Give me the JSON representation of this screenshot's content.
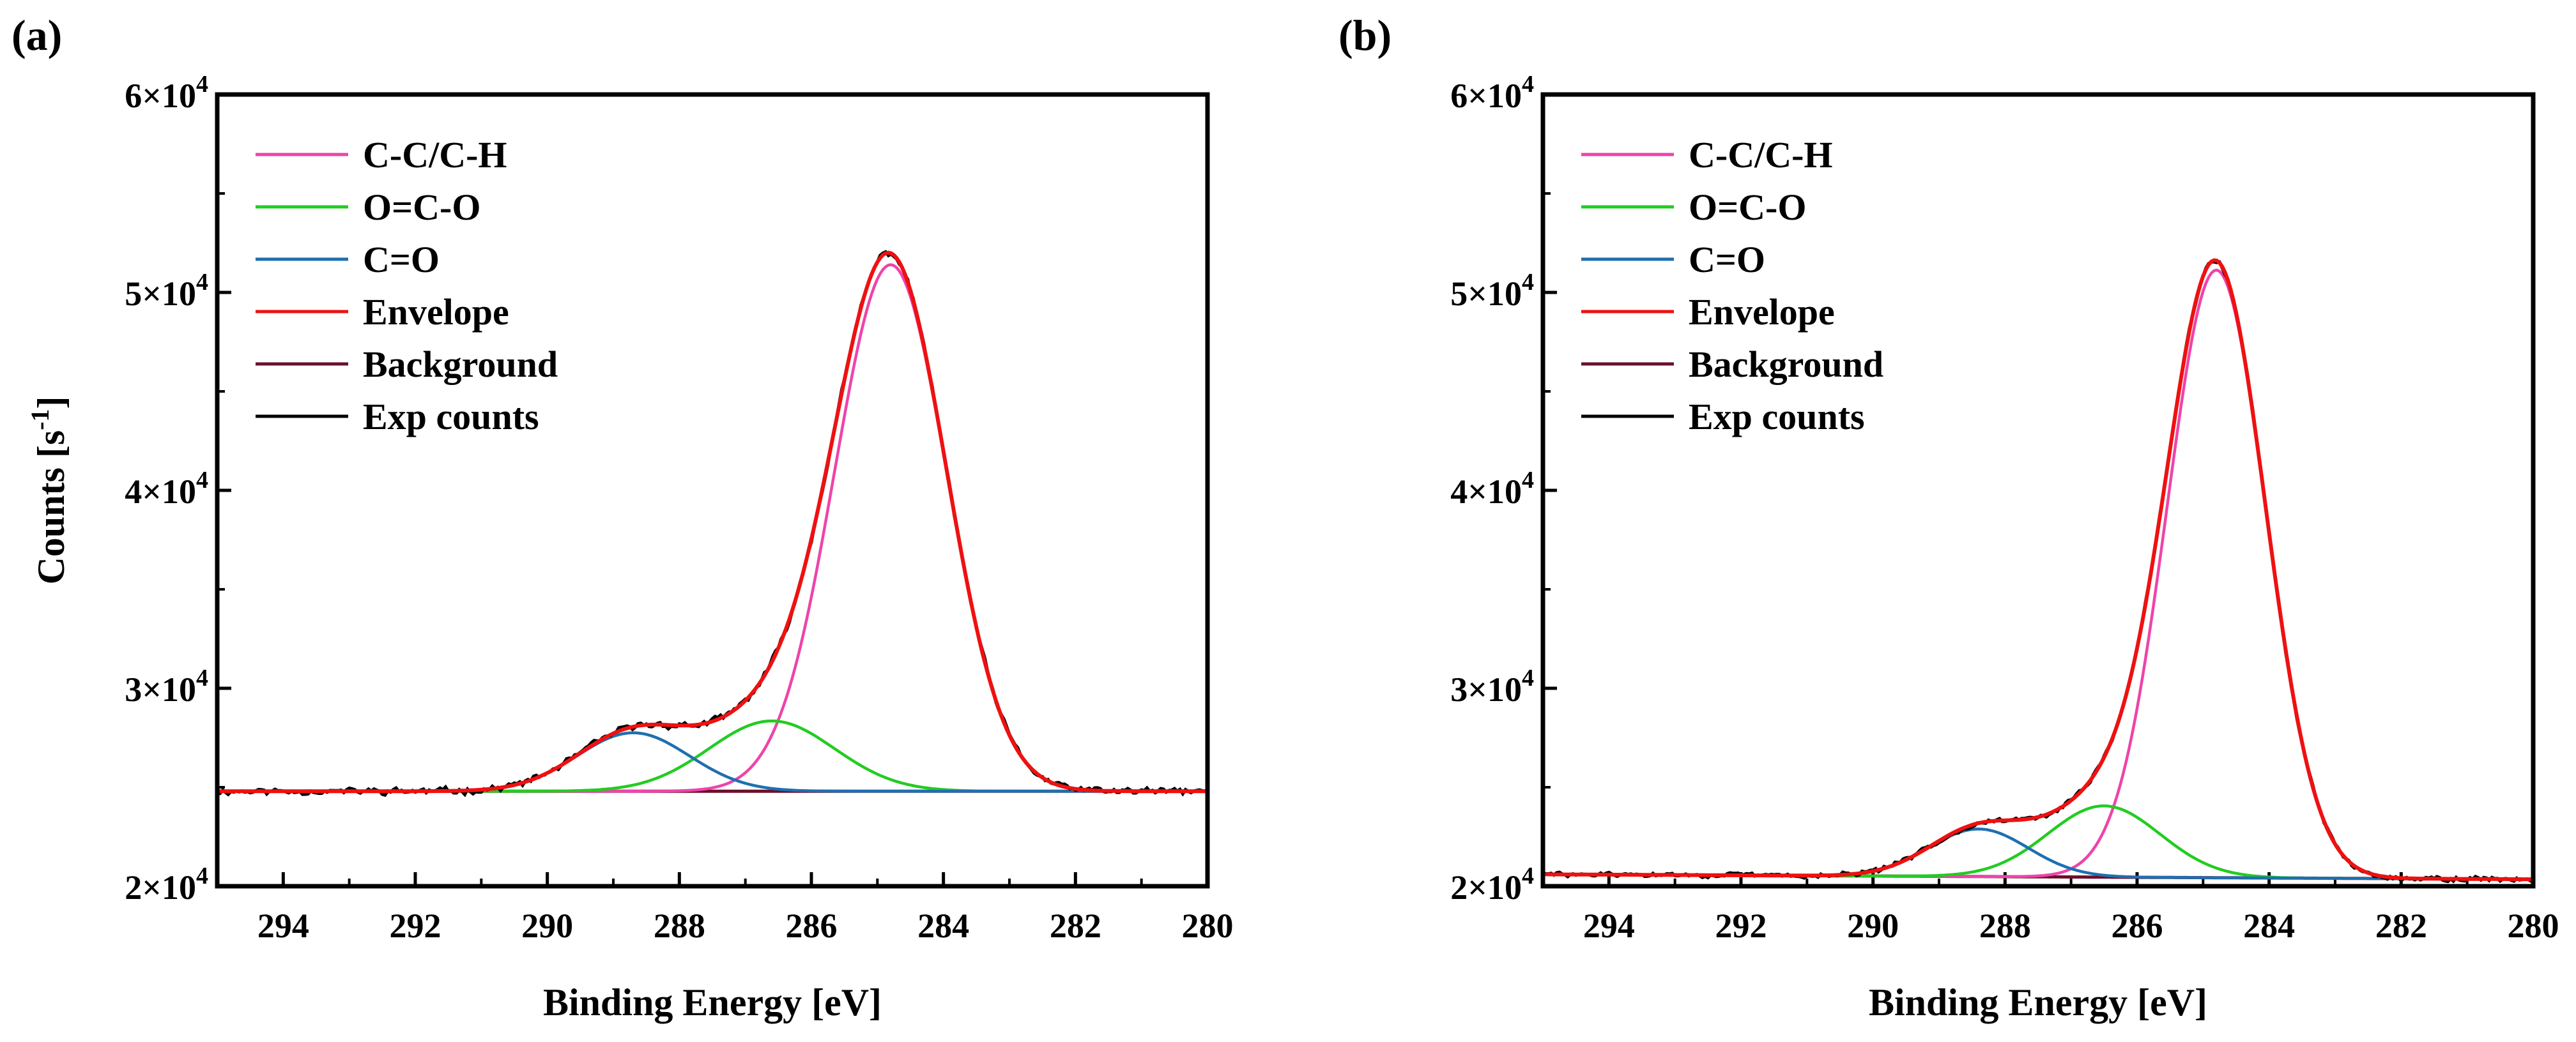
{
  "chart_data": [
    {
      "panel": "(a)",
      "type": "line",
      "xlabel": "Binding Energy [eV]",
      "ylabel": "Counts [s",
      "ylabel_sup": "-1",
      "ylabel_end": "]",
      "xlim": [
        295,
        280
      ],
      "xticks": [
        "294",
        "292",
        "290",
        "288",
        "286",
        "284",
        "282",
        "280"
      ],
      "ylim": [
        20000,
        60000
      ],
      "yticks": [
        {
          "value": 20000,
          "mant": "2",
          "sep": "×",
          "base": "10",
          "exp": "4"
        },
        {
          "value": 30000,
          "mant": "3",
          "sep": "×",
          "base": "10",
          "exp": "4"
        },
        {
          "value": 40000,
          "mant": "4",
          "sep": "×",
          "base": "10",
          "exp": "4"
        },
        {
          "value": 50000,
          "mant": "5",
          "sep": "×",
          "base": "10",
          "exp": "4"
        },
        {
          "value": 60000,
          "mant": "6",
          "sep": "×",
          "base": "10",
          "exp": "4"
        }
      ],
      "background": {
        "start": 24800,
        "end": 24800
      },
      "components": [
        {
          "name": "C-C/C-H",
          "center": 284.8,
          "sigma": 0.85,
          "amp": 26600
        },
        {
          "name": "O=C-O",
          "center": 286.6,
          "sigma": 0.95,
          "amp": 3550
        },
        {
          "name": "C=O",
          "center": 288.7,
          "sigma": 0.85,
          "amp": 2950
        }
      ],
      "noise_amp": 200,
      "legend": [
        {
          "label": "C-C/C-H",
          "color": "#ee44aa"
        },
        {
          "label": "O=C-O",
          "color": "#22cc22"
        },
        {
          "label": "C=O",
          "color": "#1f6fb0"
        },
        {
          "label": "Envelope",
          "color": "#ee1111"
        },
        {
          "label": "Background",
          "color": "#6b0f2a"
        },
        {
          "label": "Exp counts",
          "color": "#000000"
        }
      ]
    },
    {
      "panel": "(b)",
      "type": "line",
      "xlabel": "Binding Energy [eV]",
      "xlim": [
        295,
        280
      ],
      "xticks": [
        "294",
        "292",
        "290",
        "288",
        "286",
        "284",
        "282",
        "280"
      ],
      "ylim": [
        20000,
        60000
      ],
      "yticks": [
        {
          "value": 20000,
          "mant": "2",
          "sep": "×",
          "base": "10",
          "exp": "4"
        },
        {
          "value": 30000,
          "mant": "3",
          "sep": "×",
          "base": "10",
          "exp": "4"
        },
        {
          "value": 40000,
          "mant": "4",
          "sep": "×",
          "base": "10",
          "exp": "4"
        },
        {
          "value": 50000,
          "mant": "5",
          "sep": "×",
          "base": "10",
          "exp": "4"
        },
        {
          "value": 60000,
          "mant": "6",
          "sep": "×",
          "base": "10",
          "exp": "4"
        }
      ],
      "background": {
        "start": 20600,
        "end": 20350
      },
      "components": [
        {
          "name": "C-C/C-H",
          "center": 284.8,
          "sigma": 0.75,
          "amp": 30700
        },
        {
          "name": "O=C-O",
          "center": 286.5,
          "sigma": 0.85,
          "amp": 3600
        },
        {
          "name": "C=O",
          "center": 288.4,
          "sigma": 0.75,
          "amp": 2400
        }
      ],
      "noise_amp": 150,
      "legend": [
        {
          "label": "C-C/C-H",
          "color": "#ee44aa"
        },
        {
          "label": "O=C-O",
          "color": "#22cc22"
        },
        {
          "label": "C=O",
          "color": "#1f6fb0"
        },
        {
          "label": "Envelope",
          "color": "#ee1111"
        },
        {
          "label": "Background",
          "color": "#6b0f2a"
        },
        {
          "label": "Exp counts",
          "color": "#000000"
        }
      ]
    }
  ]
}
